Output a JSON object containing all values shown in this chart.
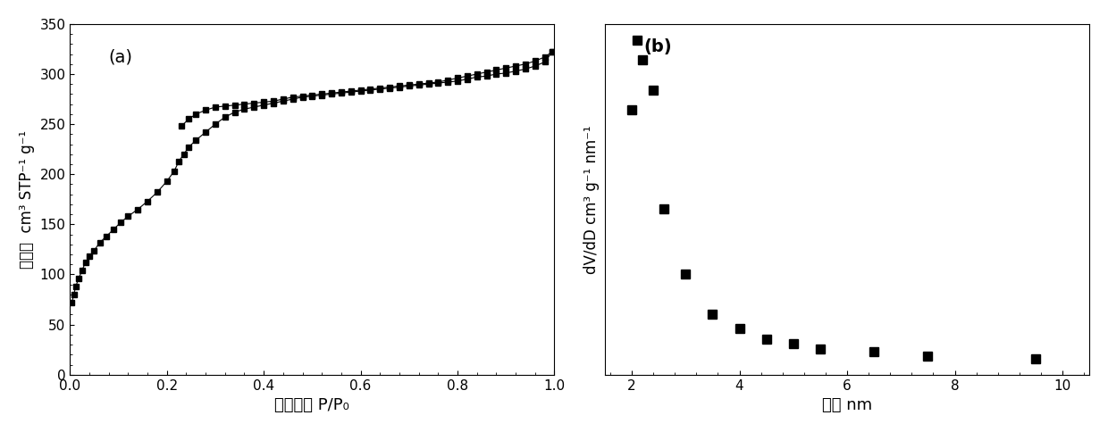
{
  "panel_a_label": "(a)",
  "panel_b_label": "(b)",
  "xlabel_a": "相对压力 P/P₀",
  "ylabel_a": "吸附量  cm³ STP⁻¹ g⁻¹",
  "xlabel_b": "孔径 nm",
  "ylabel_b": "dV/dD cm³ g⁻¹ nm⁻¹",
  "xlim_a": [
    0.0,
    1.0
  ],
  "ylim_a": [
    0,
    350
  ],
  "xlim_b": [
    1.5,
    10.5
  ],
  "adsorption_x": [
    0.004,
    0.008,
    0.012,
    0.018,
    0.025,
    0.032,
    0.04,
    0.05,
    0.062,
    0.075,
    0.09,
    0.105,
    0.12,
    0.14,
    0.16,
    0.18,
    0.2,
    0.215,
    0.225,
    0.235,
    0.245,
    0.26,
    0.28,
    0.3,
    0.32,
    0.34,
    0.36,
    0.38,
    0.4,
    0.42,
    0.44,
    0.46,
    0.48,
    0.5,
    0.52,
    0.54,
    0.56,
    0.58,
    0.6,
    0.62,
    0.64,
    0.66,
    0.68,
    0.7,
    0.72,
    0.74,
    0.76,
    0.78,
    0.8,
    0.82,
    0.84,
    0.86,
    0.88,
    0.9,
    0.92,
    0.94,
    0.96,
    0.98,
    0.995
  ],
  "adsorption_y": [
    72,
    80,
    88,
    96,
    104,
    112,
    118,
    124,
    132,
    138,
    145,
    152,
    158,
    165,
    173,
    182,
    193,
    203,
    213,
    220,
    227,
    234,
    242,
    250,
    257,
    262,
    265,
    267,
    269,
    271,
    273,
    275,
    277,
    278,
    279,
    280,
    281,
    282,
    283,
    284,
    285,
    286,
    287,
    288,
    289,
    290,
    291,
    292,
    293,
    295,
    297,
    298,
    300,
    301,
    303,
    305,
    308,
    312,
    322
  ],
  "desorption_x": [
    0.995,
    0.98,
    0.96,
    0.94,
    0.92,
    0.9,
    0.88,
    0.86,
    0.84,
    0.82,
    0.8,
    0.78,
    0.76,
    0.74,
    0.72,
    0.7,
    0.68,
    0.66,
    0.64,
    0.62,
    0.6,
    0.58,
    0.56,
    0.54,
    0.52,
    0.5,
    0.48,
    0.46,
    0.44,
    0.42,
    0.4,
    0.38,
    0.36,
    0.34,
    0.32,
    0.3,
    0.28,
    0.26,
    0.245,
    0.23
  ],
  "desorption_y": [
    322,
    317,
    313,
    310,
    308,
    306,
    304,
    302,
    300,
    298,
    296,
    294,
    292,
    291,
    290,
    289,
    288,
    287,
    286,
    285,
    284,
    283,
    282,
    281,
    280,
    279,
    278,
    277,
    275,
    273,
    272,
    271,
    270,
    269,
    268,
    267,
    264,
    260,
    255,
    248
  ],
  "pore_x": [
    2.0,
    2.1,
    2.2,
    2.4,
    2.6,
    3.0,
    3.5,
    4.0,
    4.5,
    5.0,
    5.5,
    6.5,
    7.5,
    9.5
  ],
  "pore_y": [
    0.58,
    0.72,
    0.68,
    0.62,
    0.38,
    0.25,
    0.17,
    0.14,
    0.12,
    0.11,
    0.1,
    0.095,
    0.085,
    0.08
  ],
  "marker_color": "#000000",
  "marker_size": 4.5,
  "line_color": "#000000"
}
